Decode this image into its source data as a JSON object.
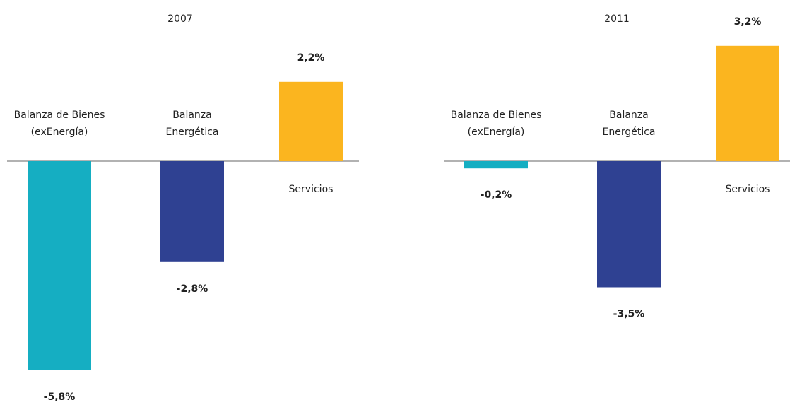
{
  "chart_data": [
    {
      "type": "bar",
      "title": "2007",
      "categories": [
        "Balanza de Bienes\n(exEnergía)",
        "Balanza\nEnergética",
        "Servicios"
      ],
      "values": [
        -5.8,
        -2.8,
        2.2
      ],
      "value_labels": [
        "-5,8%",
        "-2,8%",
        "2,2%"
      ],
      "colors": [
        "#15aec2",
        "#2f4192",
        "#fbb51f"
      ]
    },
    {
      "type": "bar",
      "title": "2011",
      "categories": [
        "Balanza de Bienes\n(exEnergía)",
        "Balanza\nEnergética",
        "Servicios"
      ],
      "values": [
        -0.2,
        -3.5,
        3.2
      ],
      "value_labels": [
        "-0,2%",
        "-3,5%",
        "3,2%"
      ],
      "colors": [
        "#15aec2",
        "#2f4192",
        "#fbb51f"
      ]
    }
  ]
}
